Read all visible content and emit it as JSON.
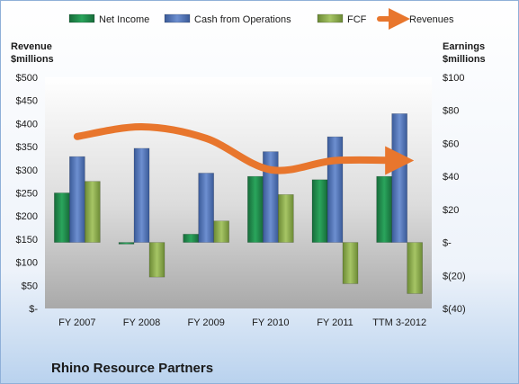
{
  "chart_data": {
    "type": "bar",
    "title": "Rhino Resource Partners",
    "categories": [
      "FY 2007",
      "FY 2008",
      "FY 2009",
      "FY 2010",
      "FY 2011",
      "TTM 3-2012"
    ],
    "left_axis": {
      "title_line1": "Revenue",
      "title_line2": "$millions",
      "min": 0,
      "max": 500,
      "step": 50,
      "ticks": [
        "$-",
        "$50",
        "$100",
        "$150",
        "$200",
        "$250",
        "$300",
        "$350",
        "$400",
        "$450",
        "$500"
      ]
    },
    "right_axis": {
      "title_line1": "Earnings",
      "title_line2": "$millions",
      "min": -40,
      "max": 100,
      "step": 20,
      "ticks": [
        "$(40)",
        "$(20)",
        "$-",
        "$20",
        "$40",
        "$60",
        "$80",
        "$100"
      ]
    },
    "series": [
      {
        "name": "Net Income",
        "axis": "right",
        "kind": "bar",
        "color": "#1f8a4c",
        "values": [
          30,
          -1,
          5,
          40,
          38,
          40
        ]
      },
      {
        "name": "Cash from Operations",
        "axis": "right",
        "kind": "bar",
        "color": "#4f73b8",
        "values": [
          52,
          57,
          42,
          55,
          64,
          78
        ]
      },
      {
        "name": "FCF",
        "axis": "right",
        "kind": "bar",
        "color": "#8fae4f",
        "values": [
          37,
          -21,
          13,
          29,
          -25,
          -31
        ]
      },
      {
        "name": "Revenues",
        "axis": "left",
        "kind": "line",
        "color": "#e8762d",
        "values": [
          372,
          393,
          368,
          300,
          320,
          320
        ]
      }
    ],
    "legend": {
      "placement": "top"
    },
    "grid": false
  }
}
